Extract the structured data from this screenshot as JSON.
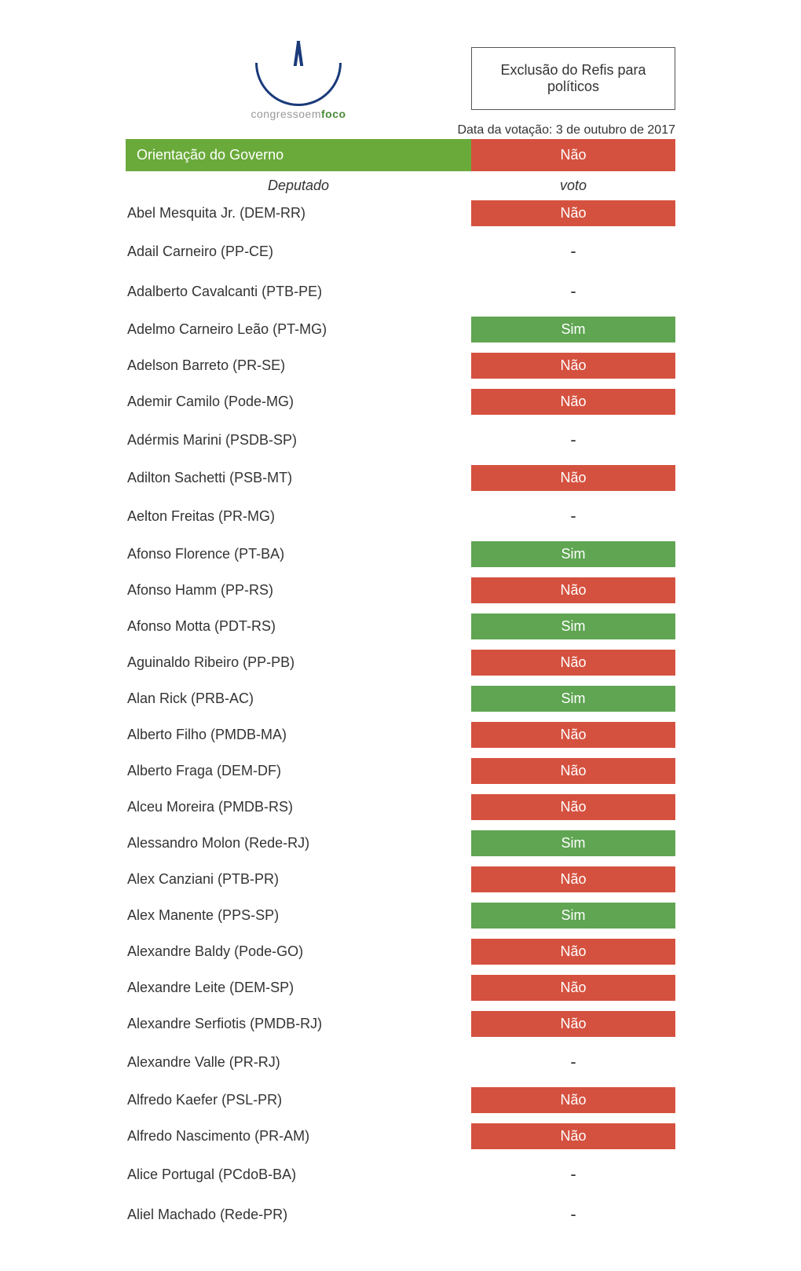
{
  "header": {
    "logo_text_plain": "congressoem",
    "logo_text_highlight": "foco",
    "title_box": "Exclusão do Refis para políticos",
    "date_line": "Data da votação: 3 de outubro de 2017"
  },
  "orientation": {
    "label": "Orientação do Governo",
    "vote": "Não",
    "vote_bg": "#d5513f"
  },
  "columns": {
    "deputado": "Deputado",
    "voto": "voto"
  },
  "colors": {
    "sim_bg": "#5fa552",
    "nao_bg": "#d5513f",
    "orientation_bg": "#6aaa3a",
    "text_white": "#ffffff"
  },
  "rows": [
    {
      "name": "Abel Mesquita Jr. (DEM-RR)",
      "vote": "Não"
    },
    {
      "name": "Adail Carneiro (PP-CE)",
      "vote": "-"
    },
    {
      "name": "Adalberto Cavalcanti (PTB-PE)",
      "vote": "-"
    },
    {
      "name": "Adelmo Carneiro Leão (PT-MG)",
      "vote": "Sim"
    },
    {
      "name": "Adelson Barreto (PR-SE)",
      "vote": "Não"
    },
    {
      "name": "Ademir Camilo (Pode-MG)",
      "vote": "Não"
    },
    {
      "name": "Adérmis Marini (PSDB-SP)",
      "vote": "-"
    },
    {
      "name": "Adilton Sachetti (PSB-MT)",
      "vote": "Não"
    },
    {
      "name": "Aelton Freitas (PR-MG)",
      "vote": "-"
    },
    {
      "name": "Afonso Florence (PT-BA)",
      "vote": "Sim"
    },
    {
      "name": "Afonso Hamm (PP-RS)",
      "vote": "Não"
    },
    {
      "name": "Afonso Motta (PDT-RS)",
      "vote": "Sim"
    },
    {
      "name": "Aguinaldo Ribeiro (PP-PB)",
      "vote": "Não"
    },
    {
      "name": "Alan Rick (PRB-AC)",
      "vote": "Sim"
    },
    {
      "name": "Alberto Filho (PMDB-MA)",
      "vote": "Não"
    },
    {
      "name": "Alberto Fraga (DEM-DF)",
      "vote": "Não"
    },
    {
      "name": "Alceu Moreira (PMDB-RS)",
      "vote": "Não"
    },
    {
      "name": "Alessandro Molon (Rede-RJ)",
      "vote": "Sim"
    },
    {
      "name": "Alex Canziani (PTB-PR)",
      "vote": "Não"
    },
    {
      "name": "Alex Manente (PPS-SP)",
      "vote": "Sim"
    },
    {
      "name": "Alexandre Baldy (Pode-GO)",
      "vote": "Não"
    },
    {
      "name": "Alexandre Leite (DEM-SP)",
      "vote": "Não"
    },
    {
      "name": "Alexandre Serfiotis (PMDB-RJ)",
      "vote": "Não"
    },
    {
      "name": "Alexandre Valle (PR-RJ)",
      "vote": "-"
    },
    {
      "name": "Alfredo Kaefer (PSL-PR)",
      "vote": "Não"
    },
    {
      "name": "Alfredo Nascimento (PR-AM)",
      "vote": "Não"
    },
    {
      "name": "Alice Portugal (PCdoB-BA)",
      "vote": "-"
    },
    {
      "name": "Aliel Machado (Rede-PR)",
      "vote": "-"
    }
  ]
}
